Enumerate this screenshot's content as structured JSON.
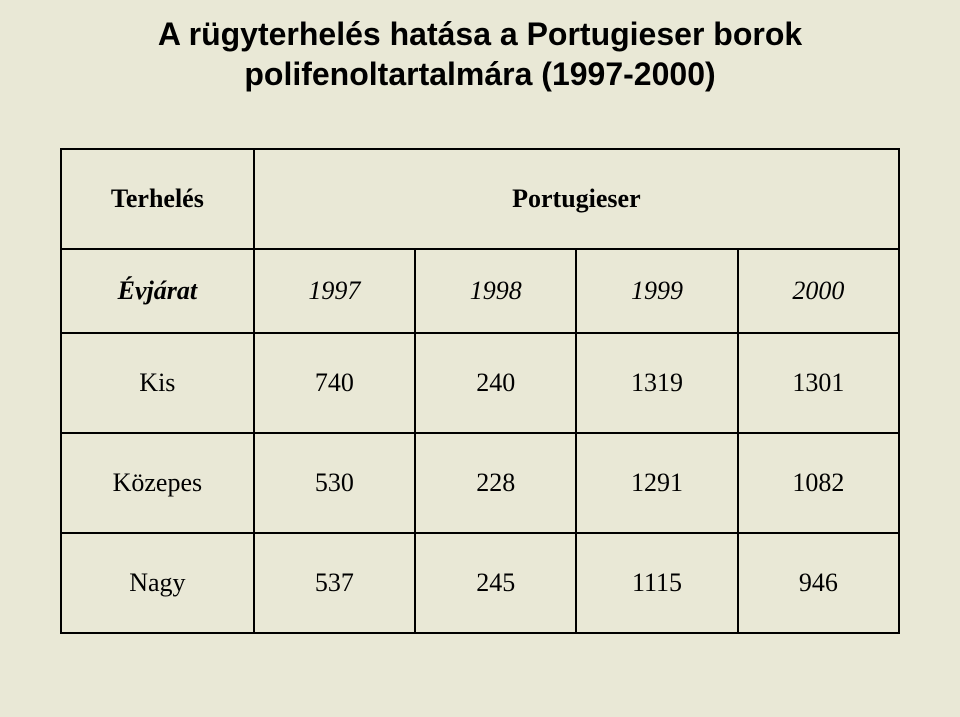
{
  "title_line1": "A rügyterhelés hatása a Portugieser borok",
  "title_line2": "polifenoltartalmára (1997-2000)",
  "background_color": "#e9e8d6",
  "text_color": "#000000",
  "border_color": "#000000",
  "title_fontsize": 32,
  "cell_fontsize": 26,
  "table": {
    "header": {
      "label": "Terhelés",
      "span_label": "Portugieser"
    },
    "vintage_row": {
      "label": "Évjárat",
      "years": [
        "1997",
        "1998",
        "1999",
        "2000"
      ]
    },
    "rows": [
      {
        "label": "Kis",
        "values": [
          "740",
          "240",
          "1319",
          "1301"
        ]
      },
      {
        "label": "Közepes",
        "values": [
          "530",
          "228",
          "1291",
          "1082"
        ]
      },
      {
        "label": "Nagy",
        "values": [
          "537",
          "245",
          "1115",
          "946"
        ]
      }
    ],
    "columns_proportions": [
      0.23,
      0.1925,
      0.1925,
      0.1925,
      0.1925
    ]
  }
}
